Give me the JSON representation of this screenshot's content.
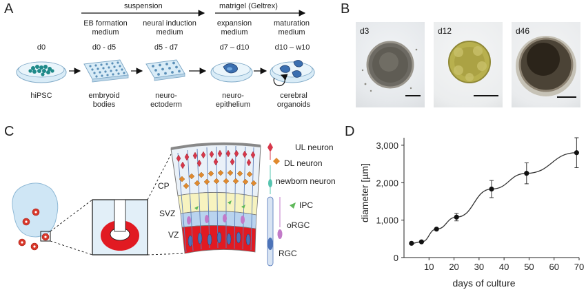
{
  "panels": {
    "a": "A",
    "b": "B",
    "c": "C",
    "d": "D"
  },
  "protocol": {
    "phases": [
      "suspension",
      "matrigel (Geltrex)"
    ],
    "media": [
      [
        "EB formation",
        "medium"
      ],
      [
        "neural induction",
        "medium"
      ],
      [
        "expansion",
        "medium"
      ],
      [
        "maturation",
        "medium"
      ]
    ],
    "days": [
      "d0",
      "d0 - d5",
      "d5 - d7",
      "d7 – d10",
      "d10 – w10"
    ],
    "stages": [
      [
        "hiPSC"
      ],
      [
        "embryoid",
        "bodies"
      ],
      [
        "neuro-",
        "ectoderm"
      ],
      [
        "neuro-",
        "epithelium"
      ],
      [
        "cerebral",
        "organoids"
      ]
    ]
  },
  "micrographs": [
    {
      "day": "d3"
    },
    {
      "day": "d12"
    },
    {
      "day": "d46"
    }
  ],
  "cortex": {
    "zones": [
      "CP",
      "SVZ",
      "VZ"
    ],
    "legend": [
      "UL neuron",
      "DL neuron",
      "newborn neuron",
      "IPC",
      "oRGC",
      "RGC"
    ],
    "colors": {
      "ul_neuron": "#d7374a",
      "dl_neuron": "#e08a2e",
      "newborn": "#56c4b0",
      "ipc": "#5fb85a",
      "orgc": "#c27ac8",
      "rgc": "#4d73b8",
      "vz": "#e11a22",
      "svz": "#b9d3ee",
      "cp": "#f7f3bf"
    }
  },
  "chart_data": {
    "type": "line",
    "xlabel": "days of culture",
    "ylabel": "diameter [µm]",
    "xlim": [
      0,
      70
    ],
    "ylim": [
      0,
      3200
    ],
    "xticks": [
      10,
      20,
      30,
      40,
      50,
      60,
      70
    ],
    "yticks": [
      0,
      1000,
      2000,
      3000
    ],
    "ytick_labels": [
      "0",
      "1,000",
      "2,000",
      "3,000"
    ],
    "x": [
      3,
      7,
      13,
      21,
      35,
      49,
      69
    ],
    "y": [
      380,
      420,
      760,
      1080,
      1830,
      2250,
      2800
    ],
    "error": [
      0,
      0,
      0,
      100,
      230,
      280,
      400
    ],
    "grid": false
  }
}
